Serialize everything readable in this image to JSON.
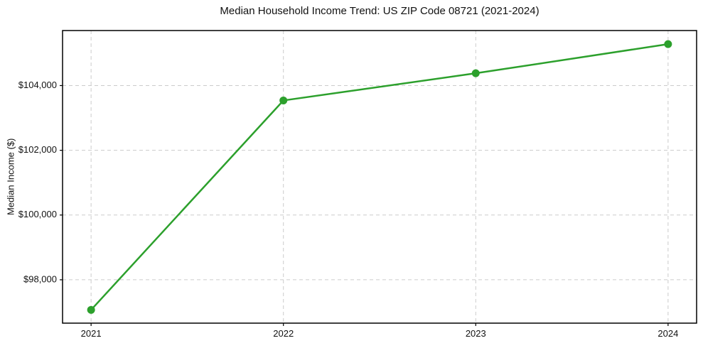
{
  "chart_data": {
    "type": "line",
    "title": "Median Household Income Trend: US ZIP Code 08721 (2021-2024)",
    "xlabel": "",
    "ylabel": "Median Income ($)",
    "categories": [
      "2021",
      "2022",
      "2023",
      "2024"
    ],
    "series": [
      {
        "name": "Median Household Income",
        "values": [
          97070,
          103540,
          104380,
          105280
        ]
      }
    ],
    "ylim": [
      96660,
      105700
    ],
    "yticks": [
      {
        "value": 98000,
        "label": "$98,000"
      },
      {
        "value": 100000,
        "label": "$100,000"
      },
      {
        "value": 102000,
        "label": "$102,000"
      },
      {
        "value": 104000,
        "label": "$104,000"
      }
    ],
    "grid": true,
    "grid_line_style": "dashed",
    "legend_position": "none",
    "line_color": "#2ca02c",
    "marker_color": "#2ca02c",
    "marker_shape": "circle",
    "grid_color": "#cccccc",
    "axis_color": "#000000",
    "background_color": "#ffffff"
  }
}
